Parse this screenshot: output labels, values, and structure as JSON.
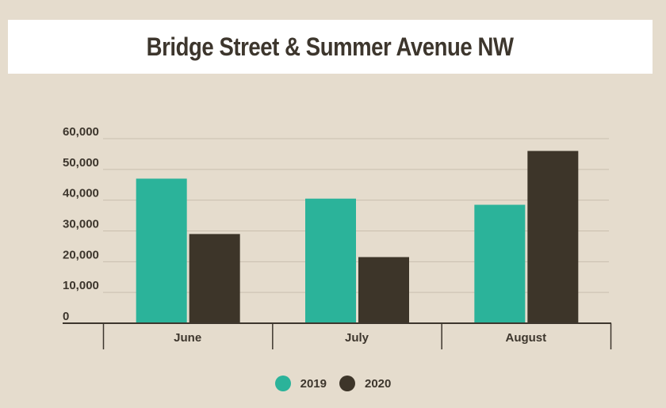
{
  "chart_data": {
    "type": "bar",
    "title": "Bridge Street & Summer Avenue NW",
    "categories": [
      "June",
      "July",
      "August"
    ],
    "series": [
      {
        "name": "2019",
        "color": "#2bb39a",
        "values": [
          47000,
          40500,
          38500
        ]
      },
      {
        "name": "2020",
        "color": "#3d3529",
        "values": [
          29000,
          21500,
          56000
        ]
      }
    ],
    "ylim": [
      0,
      60000
    ],
    "yticks": [
      0,
      10000,
      20000,
      30000,
      40000,
      50000,
      60000
    ],
    "ytick_labels": [
      "0",
      "10,000",
      "20,000",
      "30,000",
      "40,000",
      "50,000",
      "60,000"
    ],
    "grid": true,
    "legend": "bottom-center"
  }
}
